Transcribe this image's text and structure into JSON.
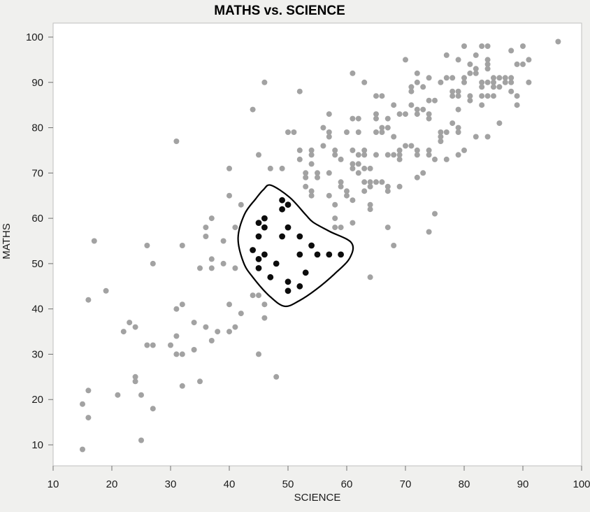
{
  "window": {
    "title": "MATHS vs. SCIENCE"
  },
  "chart_data": {
    "type": "scatter",
    "title": "MATHS vs. SCIENCE",
    "xlabel": "SCIENCE",
    "ylabel": "MATHS",
    "xlim": [
      10,
      100
    ],
    "ylim": [
      10,
      100
    ],
    "xticks": [
      10,
      20,
      30,
      40,
      50,
      60,
      70,
      80,
      90,
      100
    ],
    "yticks": [
      10,
      20,
      30,
      40,
      50,
      60,
      70,
      80,
      90,
      100
    ],
    "grid": false,
    "legend_position": "none",
    "series": [
      {
        "name": "unselected-points",
        "marker": "circle",
        "color": "#a2a2a2",
        "points": [
          [
            15,
            9
          ],
          [
            25,
            11
          ],
          [
            16,
            16
          ],
          [
            27,
            18
          ],
          [
            15,
            19
          ],
          [
            21,
            21
          ],
          [
            25,
            21
          ],
          [
            16,
            22
          ],
          [
            24,
            24
          ],
          [
            24,
            25
          ],
          [
            32,
            23
          ],
          [
            35,
            24
          ],
          [
            31,
            30
          ],
          [
            32,
            30
          ],
          [
            34,
            31
          ],
          [
            26,
            32
          ],
          [
            27,
            32
          ],
          [
            30,
            32
          ],
          [
            37,
            33
          ],
          [
            31,
            34
          ],
          [
            22,
            35
          ],
          [
            38,
            35
          ],
          [
            40,
            35
          ],
          [
            24,
            36
          ],
          [
            36,
            36
          ],
          [
            41,
            36
          ],
          [
            23,
            37
          ],
          [
            34,
            37
          ],
          [
            16,
            42
          ],
          [
            19,
            44
          ],
          [
            17,
            55
          ],
          [
            26,
            54
          ],
          [
            32,
            54
          ],
          [
            27,
            50
          ],
          [
            31,
            40
          ],
          [
            32,
            41
          ],
          [
            42,
            39
          ],
          [
            40,
            41
          ],
          [
            46,
            41
          ],
          [
            46,
            38
          ],
          [
            44,
            43
          ],
          [
            45,
            43
          ],
          [
            45,
            30
          ],
          [
            48,
            25
          ],
          [
            35,
            49
          ],
          [
            37,
            49
          ],
          [
            37,
            51
          ],
          [
            39,
            50
          ],
          [
            41,
            49
          ],
          [
            36,
            56
          ],
          [
            36,
            58
          ],
          [
            41,
            58
          ],
          [
            37,
            60
          ],
          [
            39,
            55
          ],
          [
            40,
            65
          ],
          [
            42,
            63
          ],
          [
            53,
            67
          ],
          [
            54,
            66
          ],
          [
            54,
            65
          ],
          [
            57,
            65
          ],
          [
            57,
            70
          ],
          [
            55,
            70
          ],
          [
            55,
            69
          ],
          [
            59,
            68
          ],
          [
            59,
            67
          ],
          [
            60,
            66
          ],
          [
            60,
            65
          ],
          [
            61,
            64
          ],
          [
            62,
            70
          ],
          [
            63,
            68
          ],
          [
            63,
            66
          ],
          [
            64,
            68
          ],
          [
            64,
            67
          ],
          [
            65,
            68
          ],
          [
            66,
            68
          ],
          [
            67,
            67
          ],
          [
            67,
            66
          ],
          [
            69,
            67
          ],
          [
            64,
            63
          ],
          [
            64,
            62
          ],
          [
            58,
            63
          ],
          [
            58,
            60
          ],
          [
            61,
            59
          ],
          [
            58,
            58
          ],
          [
            59,
            58
          ],
          [
            67,
            58
          ],
          [
            68,
            54
          ],
          [
            64,
            47
          ],
          [
            72,
            69
          ],
          [
            73,
            70
          ],
          [
            75,
            61
          ],
          [
            74,
            57
          ],
          [
            40,
            71
          ],
          [
            47,
            71
          ],
          [
            49,
            71
          ],
          [
            52,
            73
          ],
          [
            52,
            75
          ],
          [
            54,
            75
          ],
          [
            54,
            74
          ],
          [
            54,
            72
          ],
          [
            53,
            70
          ],
          [
            53,
            69
          ],
          [
            45,
            74
          ],
          [
            58,
            75
          ],
          [
            58,
            74
          ],
          [
            59,
            73
          ],
          [
            61,
            75
          ],
          [
            61,
            72
          ],
          [
            61,
            71
          ],
          [
            62,
            74
          ],
          [
            62,
            72
          ],
          [
            63,
            75
          ],
          [
            63,
            74
          ],
          [
            63,
            71
          ],
          [
            64,
            71
          ],
          [
            65,
            74
          ],
          [
            67,
            74
          ],
          [
            68,
            74
          ],
          [
            70,
            76
          ],
          [
            71,
            76
          ],
          [
            69,
            75
          ],
          [
            69,
            74
          ],
          [
            69,
            73
          ],
          [
            72,
            75
          ],
          [
            72,
            74
          ],
          [
            74,
            75
          ],
          [
            74,
            74
          ],
          [
            75,
            73
          ],
          [
            77,
            73
          ],
          [
            79,
            74
          ],
          [
            80,
            75
          ],
          [
            50,
            79
          ],
          [
            51,
            79
          ],
          [
            56,
            76
          ],
          [
            56,
            80
          ],
          [
            57,
            78
          ],
          [
            57,
            79
          ],
          [
            57,
            83
          ],
          [
            60,
            79
          ],
          [
            61,
            82
          ],
          [
            62,
            82
          ],
          [
            62,
            79
          ],
          [
            65,
            79
          ],
          [
            65,
            82
          ],
          [
            65,
            83
          ],
          [
            66,
            79
          ],
          [
            66,
            80
          ],
          [
            67,
            80
          ],
          [
            67,
            82
          ],
          [
            68,
            78
          ],
          [
            69,
            83
          ],
          [
            70,
            83
          ],
          [
            44,
            84
          ],
          [
            52,
            88
          ],
          [
            46,
            90
          ],
          [
            31,
            77
          ],
          [
            70,
            95
          ],
          [
            61,
            92
          ],
          [
            63,
            90
          ],
          [
            65,
            87
          ],
          [
            66,
            87
          ],
          [
            68,
            85
          ],
          [
            96,
            99
          ],
          [
            80,
            98
          ],
          [
            83,
            98
          ],
          [
            84,
            98
          ],
          [
            88,
            97
          ],
          [
            90,
            98
          ],
          [
            77,
            96
          ],
          [
            82,
            96
          ],
          [
            84,
            95
          ],
          [
            91,
            95
          ],
          [
            79,
            95
          ],
          [
            82,
            93
          ],
          [
            84,
            94
          ],
          [
            84,
            93
          ],
          [
            89,
            94
          ],
          [
            90,
            94
          ],
          [
            81,
            94
          ],
          [
            81,
            92
          ],
          [
            82,
            92
          ],
          [
            72,
            92
          ],
          [
            74,
            91
          ],
          [
            77,
            91
          ],
          [
            78,
            91
          ],
          [
            85,
            91
          ],
          [
            86,
            91
          ],
          [
            87,
            91
          ],
          [
            88,
            91
          ],
          [
            80,
            91
          ],
          [
            80,
            90
          ],
          [
            87,
            90
          ],
          [
            88,
            90
          ],
          [
            72,
            90
          ],
          [
            71,
            89
          ],
          [
            73,
            89
          ],
          [
            71,
            88
          ],
          [
            76,
            90
          ],
          [
            83,
            90
          ],
          [
            83,
            89
          ],
          [
            84,
            90
          ],
          [
            85,
            90
          ],
          [
            85,
            89
          ],
          [
            86,
            89
          ],
          [
            91,
            90
          ],
          [
            88,
            88
          ],
          [
            89,
            87
          ],
          [
            89,
            85
          ],
          [
            78,
            88
          ],
          [
            78,
            87
          ],
          [
            79,
            87
          ],
          [
            79,
            88
          ],
          [
            81,
            87
          ],
          [
            81,
            86
          ],
          [
            83,
            87
          ],
          [
            84,
            87
          ],
          [
            85,
            87
          ],
          [
            74,
            86
          ],
          [
            75,
            86
          ],
          [
            71,
            85
          ],
          [
            72,
            84
          ],
          [
            73,
            84
          ],
          [
            74,
            83
          ],
          [
            74,
            82
          ],
          [
            72,
            83
          ],
          [
            78,
            81
          ],
          [
            79,
            84
          ],
          [
            79,
            80
          ],
          [
            79,
            79
          ],
          [
            76,
            79
          ],
          [
            77,
            79
          ],
          [
            76,
            78
          ],
          [
            76,
            77
          ],
          [
            82,
            78
          ],
          [
            83,
            85
          ],
          [
            86,
            81
          ],
          [
            84,
            78
          ]
        ]
      },
      {
        "name": "selected-points",
        "marker": "circle",
        "color": "#0c0c0c",
        "points": [
          [
            49,
            64
          ],
          [
            50,
            63
          ],
          [
            49,
            62
          ],
          [
            46,
            60
          ],
          [
            45,
            59
          ],
          [
            46,
            58
          ],
          [
            50,
            58
          ],
          [
            45,
            56
          ],
          [
            49,
            56
          ],
          [
            52,
            56
          ],
          [
            54,
            54
          ],
          [
            44,
            53
          ],
          [
            46,
            52
          ],
          [
            52,
            52
          ],
          [
            55,
            52
          ],
          [
            57,
            52
          ],
          [
            59,
            52
          ],
          [
            45,
            51
          ],
          [
            48,
            50
          ],
          [
            45,
            49
          ],
          [
            53,
            48
          ],
          [
            47,
            47
          ],
          [
            50,
            46
          ],
          [
            52,
            45
          ],
          [
            50,
            44
          ]
        ]
      }
    ],
    "annotations": [
      {
        "type": "lasso-outline",
        "description": "freehand selection loop around selected points",
        "color": "#000000",
        "closed": true,
        "points": [
          [
            47.1,
            67.3
          ],
          [
            50.3,
            64.6
          ],
          [
            53.0,
            60.8
          ],
          [
            54.3,
            59.1
          ],
          [
            57.1,
            57.1
          ],
          [
            60.8,
            54.6
          ],
          [
            60.5,
            51.2
          ],
          [
            57.9,
            47.7
          ],
          [
            54.8,
            44.3
          ],
          [
            51.9,
            41.8
          ],
          [
            49.4,
            40.6
          ],
          [
            46.8,
            42.9
          ],
          [
            44.0,
            47.0
          ],
          [
            42.4,
            50.3
          ],
          [
            41.5,
            55.7
          ],
          [
            42.6,
            60.9
          ],
          [
            44.5,
            64.3
          ],
          [
            45.8,
            66.3
          ]
        ]
      }
    ]
  },
  "colors": {
    "background": "#f0f0ee",
    "plot_background": "#ffffff",
    "plot_border": "#bfbfbf",
    "tick_color": "#707070",
    "label_color": "#1b1b1b",
    "unselected_point": "#a2a2a2",
    "selected_point": "#0c0c0c",
    "lasso": "#000000"
  }
}
